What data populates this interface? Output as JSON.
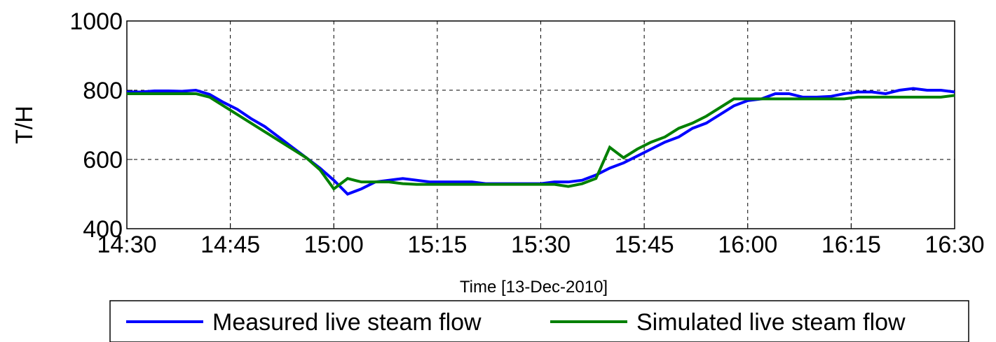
{
  "chart_data": {
    "type": "line",
    "xlabel": "Time [13-Dec-2010]",
    "ylabel": "T/H",
    "x": [
      "14:30",
      "14:32",
      "14:34",
      "14:36",
      "14:38",
      "14:40",
      "14:42",
      "14:44",
      "14:46",
      "14:48",
      "14:50",
      "14:52",
      "14:54",
      "14:56",
      "14:58",
      "15:00",
      "15:02",
      "15:04",
      "15:06",
      "15:08",
      "15:10",
      "15:12",
      "15:14",
      "15:16",
      "15:18",
      "15:20",
      "15:22",
      "15:24",
      "15:26",
      "15:28",
      "15:30",
      "15:32",
      "15:34",
      "15:36",
      "15:38",
      "15:40",
      "15:42",
      "15:44",
      "15:46",
      "15:48",
      "15:50",
      "15:52",
      "15:54",
      "15:56",
      "15:58",
      "16:00",
      "16:02",
      "16:04",
      "16:06",
      "16:08",
      "16:10",
      "16:12",
      "16:14",
      "16:16",
      "16:18",
      "16:20",
      "16:22",
      "16:24",
      "16:26",
      "16:28",
      "16:30"
    ],
    "series": [
      {
        "name": "Measured live steam flow",
        "color": "#0000ff",
        "values": [
          795,
          795,
          798,
          798,
          797,
          800,
          788,
          765,
          745,
          718,
          695,
          665,
          635,
          605,
          575,
          540,
          500,
          515,
          535,
          540,
          545,
          540,
          535,
          535,
          535,
          535,
          530,
          530,
          530,
          530,
          530,
          535,
          535,
          540,
          555,
          575,
          590,
          610,
          630,
          650,
          665,
          690,
          705,
          730,
          755,
          770,
          775,
          790,
          790,
          780,
          780,
          782,
          790,
          795,
          795,
          790,
          800,
          805,
          800,
          800,
          795
        ]
      },
      {
        "name": "Simulated live steam flow",
        "color": "#008000",
        "values": [
          790,
          790,
          790,
          790,
          790,
          790,
          780,
          755,
          730,
          705,
          680,
          655,
          630,
          605,
          570,
          515,
          545,
          535,
          535,
          535,
          530,
          528,
          528,
          528,
          528,
          528,
          528,
          528,
          528,
          528,
          528,
          528,
          522,
          530,
          545,
          635,
          605,
          630,
          650,
          665,
          690,
          705,
          725,
          750,
          775,
          775,
          775,
          775,
          775,
          775,
          775,
          775,
          775,
          780,
          780,
          780,
          780,
          780,
          780,
          780,
          785
        ]
      }
    ],
    "xticks": [
      "14:30",
      "14:45",
      "15:00",
      "15:15",
      "15:30",
      "15:45",
      "16:00",
      "16:15",
      "16:30"
    ],
    "ylim": [
      400,
      1000
    ],
    "yticks": [
      400,
      600,
      800,
      1000
    ],
    "grid": true,
    "legend": "bottom"
  }
}
